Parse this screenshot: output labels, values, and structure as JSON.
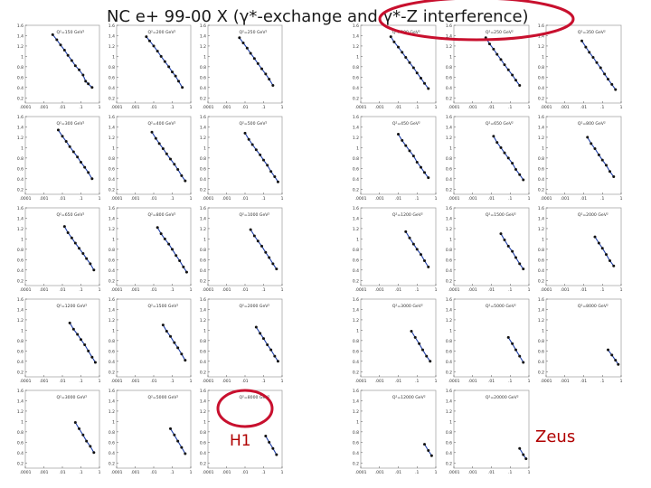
{
  "title": "NC e+ 99-00 X  (γ*-exchange and γ*-Z interference)",
  "labels": {
    "h1": "H1",
    "zeus": "Zeus"
  },
  "colors": {
    "annotation": "#c8102e",
    "curve": "#1f3fa8",
    "points": "#111111",
    "label": "#b00000"
  },
  "chart_data": {
    "type": "scatter",
    "x_scale": "log",
    "xlim": [
      0.0001,
      1
    ],
    "ylim": [
      0.1,
      1.6
    ],
    "ytick_labels": [
      "0.2",
      "0.4",
      "0.6",
      "0.8",
      "1",
      "1.2",
      "1.4",
      "1.6"
    ],
    "h1": {
      "xtick_labels": [
        ".0001",
        ".001",
        ".01",
        ".1",
        "1"
      ],
      "panels": [
        {
          "label": "Q²=150 GeV²",
          "points": [
            [
              0.003,
              1.42
            ],
            [
              0.005,
              1.32
            ],
            [
              0.008,
              1.22
            ],
            [
              0.013,
              1.12
            ],
            [
              0.02,
              1.02
            ],
            [
              0.032,
              0.92
            ],
            [
              0.05,
              0.82
            ],
            [
              0.08,
              0.74
            ],
            [
              0.13,
              0.64
            ],
            [
              0.18,
              0.52
            ],
            [
              0.25,
              0.47
            ],
            [
              0.4,
              0.4
            ]
          ]
        },
        {
          "label": "Q²=200 GeV²",
          "points": [
            [
              0.004,
              1.38
            ],
            [
              0.006,
              1.3
            ],
            [
              0.01,
              1.2
            ],
            [
              0.016,
              1.1
            ],
            [
              0.025,
              1.0
            ],
            [
              0.04,
              0.9
            ],
            [
              0.065,
              0.8
            ],
            [
              0.1,
              0.7
            ],
            [
              0.15,
              0.62
            ],
            [
              0.22,
              0.52
            ],
            [
              0.35,
              0.4
            ]
          ]
        },
        {
          "label": "Q²=250 GeV²",
          "points": [
            [
              0.005,
              1.36
            ],
            [
              0.008,
              1.26
            ],
            [
              0.013,
              1.16
            ],
            [
              0.02,
              1.06
            ],
            [
              0.032,
              0.96
            ],
            [
              0.05,
              0.86
            ],
            [
              0.08,
              0.76
            ],
            [
              0.13,
              0.66
            ],
            [
              0.2,
              0.56
            ],
            [
              0.32,
              0.44
            ]
          ]
        },
        {
          "label": "Q²=300 GeV²",
          "points": [
            [
              0.006,
              1.34
            ],
            [
              0.01,
              1.22
            ],
            [
              0.016,
              1.12
            ],
            [
              0.025,
              1.02
            ],
            [
              0.04,
              0.92
            ],
            [
              0.065,
              0.82
            ],
            [
              0.1,
              0.72
            ],
            [
              0.16,
              0.62
            ],
            [
              0.25,
              0.52
            ],
            [
              0.4,
              0.4
            ]
          ]
        },
        {
          "label": "Q²=400 GeV²",
          "points": [
            [
              0.008,
              1.3
            ],
            [
              0.013,
              1.18
            ],
            [
              0.02,
              1.08
            ],
            [
              0.032,
              0.98
            ],
            [
              0.05,
              0.88
            ],
            [
              0.08,
              0.78
            ],
            [
              0.13,
              0.68
            ],
            [
              0.2,
              0.58
            ],
            [
              0.32,
              0.46
            ],
            [
              0.5,
              0.36
            ]
          ]
        },
        {
          "label": "Q²=500 GeV²",
          "points": [
            [
              0.01,
              1.28
            ],
            [
              0.016,
              1.16
            ],
            [
              0.025,
              1.06
            ],
            [
              0.04,
              0.96
            ],
            [
              0.065,
              0.86
            ],
            [
              0.1,
              0.76
            ],
            [
              0.16,
              0.66
            ],
            [
              0.25,
              0.54
            ],
            [
              0.4,
              0.44
            ],
            [
              0.6,
              0.34
            ]
          ]
        },
        {
          "label": "Q²=650 GeV²",
          "points": [
            [
              0.013,
              1.24
            ],
            [
              0.02,
              1.12
            ],
            [
              0.032,
              1.02
            ],
            [
              0.05,
              0.92
            ],
            [
              0.08,
              0.82
            ],
            [
              0.13,
              0.72
            ],
            [
              0.2,
              0.62
            ],
            [
              0.32,
              0.52
            ],
            [
              0.5,
              0.4
            ]
          ]
        },
        {
          "label": "Q²=800 GeV²",
          "points": [
            [
              0.016,
              1.22
            ],
            [
              0.025,
              1.1
            ],
            [
              0.04,
              1.0
            ],
            [
              0.065,
              0.9
            ],
            [
              0.1,
              0.8
            ],
            [
              0.16,
              0.68
            ],
            [
              0.25,
              0.58
            ],
            [
              0.4,
              0.46
            ],
            [
              0.6,
              0.36
            ]
          ]
        },
        {
          "label": "Q²=1000 GeV²",
          "points": [
            [
              0.02,
              1.18
            ],
            [
              0.032,
              1.06
            ],
            [
              0.05,
              0.96
            ],
            [
              0.08,
              0.86
            ],
            [
              0.13,
              0.74
            ],
            [
              0.2,
              0.64
            ],
            [
              0.32,
              0.52
            ],
            [
              0.5,
              0.42
            ]
          ]
        },
        {
          "label": "Q²=1200 GeV²",
          "points": [
            [
              0.025,
              1.14
            ],
            [
              0.04,
              1.02
            ],
            [
              0.065,
              0.92
            ],
            [
              0.1,
              0.82
            ],
            [
              0.16,
              0.72
            ],
            [
              0.25,
              0.6
            ],
            [
              0.4,
              0.48
            ],
            [
              0.6,
              0.38
            ]
          ]
        },
        {
          "label": "Q²=1500 GeV²",
          "points": [
            [
              0.032,
              1.1
            ],
            [
              0.05,
              0.98
            ],
            [
              0.08,
              0.88
            ],
            [
              0.13,
              0.76
            ],
            [
              0.2,
              0.66
            ],
            [
              0.32,
              0.54
            ],
            [
              0.5,
              0.42
            ]
          ]
        },
        {
          "label": "Q²=2000 GeV²",
          "points": [
            [
              0.04,
              1.06
            ],
            [
              0.065,
              0.94
            ],
            [
              0.1,
              0.84
            ],
            [
              0.16,
              0.72
            ],
            [
              0.25,
              0.62
            ],
            [
              0.4,
              0.5
            ],
            [
              0.6,
              0.4
            ]
          ]
        },
        {
          "label": "Q²=3000 GeV²",
          "points": [
            [
              0.05,
              0.98
            ],
            [
              0.08,
              0.86
            ],
            [
              0.13,
              0.74
            ],
            [
              0.2,
              0.62
            ],
            [
              0.32,
              0.52
            ],
            [
              0.5,
              0.4
            ]
          ]
        },
        {
          "label": "Q²=5000 GeV²",
          "points": [
            [
              0.08,
              0.86
            ],
            [
              0.13,
              0.74
            ],
            [
              0.2,
              0.62
            ],
            [
              0.32,
              0.5
            ],
            [
              0.5,
              0.38
            ]
          ]
        },
        {
          "label": "Q²=8000 GeV²",
          "points": [
            [
              0.13,
              0.72
            ],
            [
              0.2,
              0.6
            ],
            [
              0.32,
              0.48
            ],
            [
              0.5,
              0.36
            ]
          ]
        },
        {
          "label": "Q²=12000 GeV²",
          "points": [
            [
              0.2,
              0.56
            ],
            [
              0.32,
              0.44
            ],
            [
              0.5,
              0.34
            ],
            [
              0.7,
              0.26
            ]
          ]
        }
      ]
    },
    "zeus": {
      "xtick_labels": [
        ".0001",
        ".001",
        ".01",
        ".1",
        "1"
      ],
      "panels": [
        {
          "label": "Q²=200 GeV²",
          "points": [
            [
              0.004,
              1.38
            ],
            [
              0.006,
              1.28
            ],
            [
              0.01,
              1.18
            ],
            [
              0.016,
              1.08
            ],
            [
              0.025,
              0.98
            ],
            [
              0.04,
              0.88
            ],
            [
              0.065,
              0.78
            ],
            [
              0.1,
              0.68
            ],
            [
              0.16,
              0.58
            ],
            [
              0.25,
              0.48
            ],
            [
              0.4,
              0.38
            ]
          ]
        },
        {
          "label": "Q²=250 GeV²",
          "points": [
            [
              0.005,
              1.36
            ],
            [
              0.008,
              1.24
            ],
            [
              0.013,
              1.14
            ],
            [
              0.02,
              1.04
            ],
            [
              0.032,
              0.94
            ],
            [
              0.05,
              0.84
            ],
            [
              0.08,
              0.74
            ],
            [
              0.13,
              0.64
            ],
            [
              0.2,
              0.54
            ],
            [
              0.32,
              0.44
            ]
          ]
        },
        {
          "label": "Q²=350 GeV²",
          "points": [
            [
              0.008,
              1.3
            ],
            [
              0.013,
              1.18
            ],
            [
              0.02,
              1.08
            ],
            [
              0.032,
              0.98
            ],
            [
              0.05,
              0.88
            ],
            [
              0.08,
              0.78
            ],
            [
              0.13,
              0.66
            ],
            [
              0.2,
              0.56
            ],
            [
              0.32,
              0.46
            ],
            [
              0.5,
              0.36
            ]
          ]
        },
        {
          "label": "Q²=450 GeV²",
          "points": [
            [
              0.01,
              1.26
            ],
            [
              0.016,
              1.14
            ],
            [
              0.025,
              1.04
            ],
            [
              0.04,
              0.94
            ],
            [
              0.065,
              0.84
            ],
            [
              0.1,
              0.72
            ],
            [
              0.16,
              0.62
            ],
            [
              0.25,
              0.52
            ],
            [
              0.4,
              0.42
            ]
          ]
        },
        {
          "label": "Q²=650 GeV²",
          "points": [
            [
              0.013,
              1.22
            ],
            [
              0.02,
              1.1
            ],
            [
              0.032,
              1.0
            ],
            [
              0.05,
              0.9
            ],
            [
              0.08,
              0.8
            ],
            [
              0.13,
              0.7
            ],
            [
              0.2,
              0.58
            ],
            [
              0.32,
              0.48
            ],
            [
              0.5,
              0.38
            ]
          ]
        },
        {
          "label": "Q²=800 GeV²",
          "points": [
            [
              0.016,
              1.2
            ],
            [
              0.025,
              1.08
            ],
            [
              0.04,
              0.98
            ],
            [
              0.065,
              0.86
            ],
            [
              0.1,
              0.76
            ],
            [
              0.16,
              0.66
            ],
            [
              0.25,
              0.54
            ],
            [
              0.4,
              0.44
            ]
          ]
        },
        {
          "label": "Q²=1200 GeV²",
          "points": [
            [
              0.025,
              1.14
            ],
            [
              0.04,
              1.02
            ],
            [
              0.065,
              0.9
            ],
            [
              0.1,
              0.8
            ],
            [
              0.16,
              0.7
            ],
            [
              0.25,
              0.58
            ],
            [
              0.4,
              0.46
            ]
          ]
        },
        {
          "label": "Q²=1500 GeV²",
          "points": [
            [
              0.032,
              1.1
            ],
            [
              0.05,
              0.98
            ],
            [
              0.08,
              0.86
            ],
            [
              0.13,
              0.76
            ],
            [
              0.2,
              0.64
            ],
            [
              0.32,
              0.52
            ],
            [
              0.5,
              0.42
            ]
          ]
        },
        {
          "label": "Q²=2000 GeV²",
          "points": [
            [
              0.04,
              1.04
            ],
            [
              0.065,
              0.92
            ],
            [
              0.1,
              0.82
            ],
            [
              0.16,
              0.7
            ],
            [
              0.25,
              0.58
            ],
            [
              0.4,
              0.48
            ]
          ]
        },
        {
          "label": "Q²=3000 GeV²",
          "points": [
            [
              0.05,
              0.98
            ],
            [
              0.08,
              0.86
            ],
            [
              0.13,
              0.74
            ],
            [
              0.2,
              0.62
            ],
            [
              0.32,
              0.5
            ],
            [
              0.5,
              0.4
            ]
          ]
        },
        {
          "label": "Q²=5000 GeV²",
          "points": [
            [
              0.08,
              0.86
            ],
            [
              0.13,
              0.74
            ],
            [
              0.2,
              0.62
            ],
            [
              0.32,
              0.5
            ],
            [
              0.5,
              0.38
            ]
          ]
        },
        {
          "label": "Q²=8000 GeV²",
          "points": [
            [
              0.2,
              0.62
            ],
            [
              0.32,
              0.52
            ],
            [
              0.5,
              0.42
            ],
            [
              0.7,
              0.34
            ]
          ]
        },
        {
          "label": "Q²=12000 GeV²",
          "points": [
            [
              0.25,
              0.56
            ],
            [
              0.4,
              0.44
            ],
            [
              0.6,
              0.34
            ]
          ]
        },
        {
          "label": "Q²=20000 GeV²",
          "points": [
            [
              0.32,
              0.48
            ],
            [
              0.5,
              0.36
            ],
            [
              0.7,
              0.28
            ]
          ]
        }
      ]
    }
  }
}
